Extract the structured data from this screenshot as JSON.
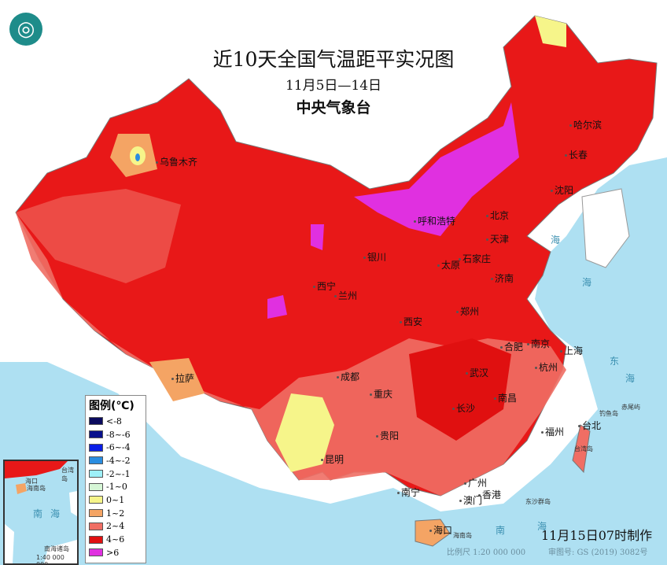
{
  "logo_icon": "cma-logo-icon",
  "title": "近10天全国气温距平实况图",
  "date_range": "11月5日—14日",
  "agency": "中央气象台",
  "legend": {
    "title": "图例(℃)",
    "items": [
      {
        "label": "<-8",
        "color": "#0a0a5e"
      },
      {
        "label": "-8~-6",
        "color": "#08108c"
      },
      {
        "label": "-6~-4",
        "color": "#0a1ee6"
      },
      {
        "label": "-4~-2",
        "color": "#2a8de0"
      },
      {
        "label": "-2~-1",
        "color": "#9ef0f8"
      },
      {
        "label": "-1~0",
        "color": "#d6f6d6"
      },
      {
        "label": "0~1",
        "color": "#f6f58a"
      },
      {
        "label": "1~2",
        "color": "#f4a464"
      },
      {
        "label": "2~4",
        "color": "#f06e64"
      },
      {
        "label": "4~6",
        "color": "#e01010"
      },
      {
        "label": ">6",
        "color": "#e030e0"
      }
    ]
  },
  "cities": [
    "乌鲁木齐",
    "哈尔滨",
    "长春",
    "沈阳",
    "北京",
    "天津",
    "呼和浩特",
    "银川",
    "石家庄",
    "太原",
    "济南",
    "西宁",
    "兰州",
    "郑州",
    "西安",
    "合肥",
    "南京",
    "上海",
    "杭州",
    "拉萨",
    "成都",
    "武汉",
    "重庆",
    "南昌",
    "长沙",
    "贵阳",
    "福州",
    "台北",
    "昆明",
    "广州",
    "南宁",
    "澳门",
    "香港",
    "海口"
  ],
  "seas": [
    "海",
    "海",
    "东",
    "海",
    "南",
    "海"
  ],
  "small_labels": [
    "钓鱼岛",
    "赤尾屿",
    "台湾岛",
    "东沙群岛",
    "海南岛"
  ],
  "inset": {
    "labels": [
      "海口",
      "海南岛",
      "台湾岛",
      "南",
      "海",
      "南海诸岛"
    ],
    "scale": "1:40 000 000"
  },
  "made_time": "11月15日07时制作",
  "scale": "比例尺 1:20 000 000",
  "map_number": "审图号: GS (2019) 3082号"
}
